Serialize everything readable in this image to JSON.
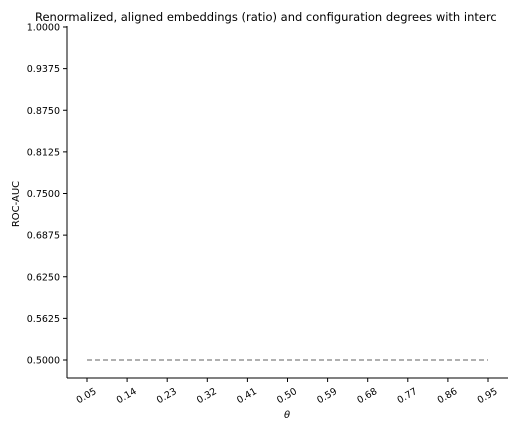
{
  "chart_data": {
    "type": "line",
    "title": "Renormalized, aligned embeddings (ratio) and configuration degrees with interc",
    "xlabel": "θ",
    "ylabel": "ROC-AUC",
    "x_ticks": [
      "0.05",
      "0.14",
      "0.23",
      "0.32",
      "0.41",
      "0.50",
      "0.59",
      "0.68",
      "0.77",
      "0.86",
      "0.95"
    ],
    "y_ticks": [
      "0.5000",
      "0.5625",
      "0.6250",
      "0.6875",
      "0.7500",
      "0.8125",
      "0.8750",
      "0.9375",
      "1.0000"
    ],
    "ylim": [
      0.5,
      1.0
    ],
    "grid": false,
    "series": [
      {
        "style": "dashed",
        "color": "#808080",
        "x": [
          0.05,
          0.14,
          0.23,
          0.32,
          0.41,
          0.5,
          0.59,
          0.68,
          0.77,
          0.86,
          0.95
        ],
        "values": [
          0.5,
          0.5,
          0.5,
          0.5,
          0.5,
          0.5,
          0.5,
          0.5,
          0.5,
          0.5,
          0.5
        ]
      }
    ]
  }
}
